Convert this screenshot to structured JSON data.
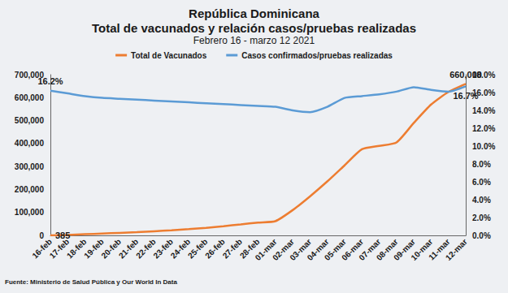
{
  "chart_data": {
    "type": "line",
    "title": "República Dominicana",
    "subtitle": "Total de vacunados y relación casos/pruebas realizadas",
    "annotations": [
      "Febrero 16 - marzo 12 2021",
      "Fuente: Ministerio de Salud Pública y Our World In Data"
    ],
    "categories": [
      "16-feb",
      "17-feb",
      "18-feb",
      "19-feb",
      "20-feb",
      "21-feb",
      "22-feb",
      "23-feb",
      "24-feb",
      "25-feb",
      "26-feb",
      "27-feb",
      "28-feb",
      "01-mar",
      "02-mar",
      "03-mar",
      "04-mar",
      "05-mar",
      "06-mar",
      "07-mar",
      "08-mar",
      "09-mar",
      "10-mar",
      "11-mar",
      "12-mar"
    ],
    "series": [
      {
        "name": "Total de Vacunados",
        "color": "#ed7d31",
        "values": [
          385,
          2000,
          5000,
          8000,
          11000,
          14000,
          18000,
          22000,
          27000,
          33000,
          40000,
          48000,
          56000,
          62000,
          110000,
          170000,
          235000,
          305000,
          375000,
          390000,
          405000,
          490000,
          570000,
          625000,
          660000
        ],
        "value_labels": [
          "385",
          null,
          null,
          null,
          null,
          null,
          null,
          null,
          null,
          null,
          null,
          null,
          null,
          null,
          null,
          null,
          null,
          null,
          null,
          null,
          null,
          null,
          null,
          null,
          "660,000"
        ]
      },
      {
        "name": "Casos confirmados/pruebas realizadas",
        "color": "#5b9bd5",
        "axis": "y2",
        "values": [
          16.2,
          15.9,
          15.6,
          15.4,
          15.3,
          15.2,
          15.1,
          15.0,
          14.9,
          14.8,
          14.7,
          14.6,
          14.5,
          14.4,
          14.0,
          13.8,
          14.4,
          15.4,
          15.6,
          15.8,
          16.1,
          16.6,
          16.3,
          16.1,
          16.7
        ],
        "value_labels": [
          "16.2%",
          null,
          null,
          null,
          null,
          null,
          null,
          null,
          null,
          null,
          null,
          null,
          null,
          null,
          null,
          null,
          null,
          null,
          null,
          null,
          null,
          null,
          null,
          null,
          "16.7%"
        ]
      }
    ],
    "ylim": [
      0,
      700000
    ],
    "yticks": [
      0,
      {
        "value": 100000,
        "label": "100,000"
      },
      {
        "value": 200000,
        "label": "200,000"
      },
      {
        "value": 300000,
        "label": "300,000"
      },
      {
        "value": 400000,
        "label": "400,000"
      },
      {
        "value": 500000,
        "label": "500,000"
      },
      {
        "value": 600000,
        "label": "600,000"
      },
      {
        "value": 700000,
        "label": "700,000"
      }
    ],
    "y2lim": [
      0,
      18
    ],
    "y2ticks": [
      {
        "value": 0,
        "label": "0.0%"
      },
      {
        "value": 2,
        "label": "2.0%"
      },
      {
        "value": 4,
        "label": "4.0%"
      },
      {
        "value": 6,
        "label": "6.0%"
      },
      {
        "value": 8,
        "label": "8.0%"
      },
      {
        "value": 10,
        "label": "10.0%"
      },
      {
        "value": 12,
        "label": "12.0%"
      },
      {
        "value": 14,
        "label": "14.0%"
      },
      {
        "value": 16,
        "label": "16.0%"
      },
      {
        "value": 18,
        "label": "18.0%"
      }
    ],
    "grid": false,
    "legend": "top",
    "marker": "none"
  }
}
